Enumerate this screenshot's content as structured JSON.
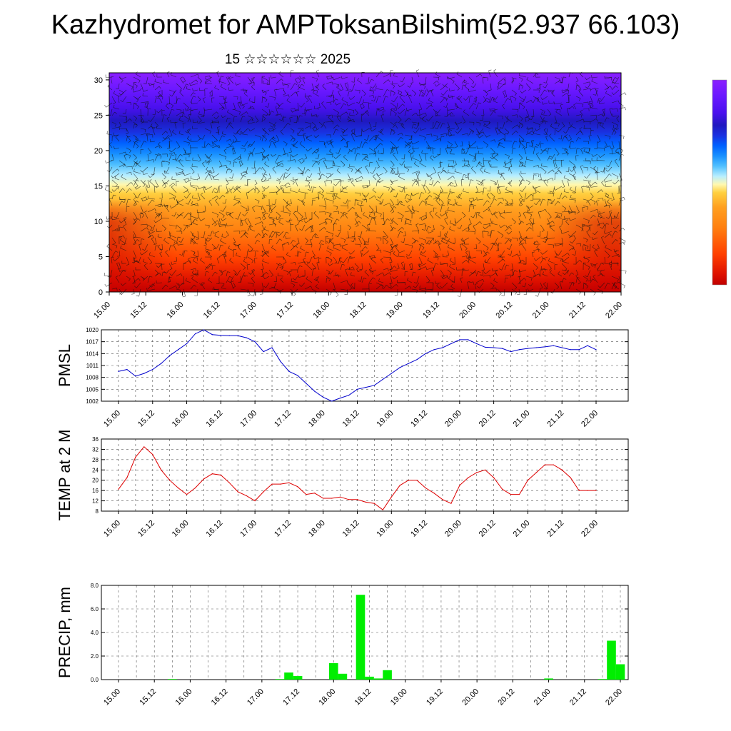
{
  "title": "Kazhydromet for AMPToksanBilshim(52.937 66.103)",
  "subtitle": "15 ☆☆☆☆☆☆ 2025",
  "chart_data": [
    {
      "type": "heatmap",
      "name": "temperature-wind-cross-section",
      "x_tick_labels": [
        "15.00",
        "15.12",
        "16.00",
        "16.12",
        "17.00",
        "17.12",
        "18.00",
        "18.12",
        "19.00",
        "19.12",
        "20.00",
        "20.12",
        "21.00",
        "21.12",
        "22.00"
      ],
      "y_ticks": [
        0,
        5,
        10,
        15,
        20,
        25,
        30
      ],
      "ylim": [
        0,
        31
      ],
      "colorbar": [
        "#8f00ff",
        "#5a00ff",
        "#2020ff",
        "#0060ff",
        "#00a8ff",
        "#60d0ff",
        "#b8f0ff",
        "#fff8a0",
        "#ffd040",
        "#ffa020",
        "#ff7010",
        "#ff3000",
        "#e00000",
        "#b00000"
      ]
    },
    {
      "type": "line",
      "name": "pmsl",
      "ylabel": "PMSL",
      "ylim": [
        1002,
        1020
      ],
      "y_ticks": [
        1002,
        1005,
        1008,
        1011,
        1014,
        1017,
        1020
      ],
      "x_tick_labels": [
        "15.00",
        "15.12",
        "16.00",
        "16.12",
        "17.00",
        "17.12",
        "18.00",
        "18.12",
        "19.00",
        "19.12",
        "20.00",
        "20.12",
        "21.00",
        "21.12",
        "22.00"
      ],
      "color": "#0000cc",
      "x": [
        0,
        3,
        6,
        9,
        12,
        15,
        18,
        21,
        24,
        27,
        30,
        33,
        36,
        39,
        42,
        45,
        48,
        51,
        54,
        57,
        60,
        63,
        66,
        69,
        72,
        75,
        78,
        81,
        84,
        87,
        90,
        93,
        96,
        99,
        102,
        105,
        108,
        111,
        114,
        117,
        120,
        123,
        126,
        129,
        132,
        135,
        138,
        141,
        144,
        147,
        150,
        153,
        156,
        159,
        162,
        165,
        168
      ],
      "values": [
        1009.5,
        1010,
        1008.3,
        1009,
        1010,
        1011.5,
        1013.5,
        1015,
        1016.5,
        1019,
        1020,
        1018.8,
        1018.6,
        1018.5,
        1018.5,
        1018,
        1017,
        1014.5,
        1015.5,
        1012,
        1009.5,
        1008.5,
        1006.5,
        1004.5,
        1003,
        1002,
        1002.8,
        1003.5,
        1005,
        1005.5,
        1006,
        1007.5,
        1009,
        1010.5,
        1011.5,
        1012.5,
        1014,
        1015,
        1015.5,
        1016.5,
        1017.5,
        1017.5,
        1016.5,
        1015.6,
        1015.5,
        1015.3,
        1014.5,
        1015,
        1015.3,
        1015.5,
        1015.7,
        1016,
        1015.5,
        1015,
        1015,
        1016,
        1015
      ]
    },
    {
      "type": "line",
      "name": "temp-2m",
      "ylabel": "TEMP at 2 M",
      "ylim": [
        8,
        36
      ],
      "y_ticks": [
        8,
        12,
        16,
        20,
        24,
        28,
        32,
        36
      ],
      "x_tick_labels": [
        "15.00",
        "15.12",
        "16.00",
        "16.12",
        "17.00",
        "17.12",
        "18.00",
        "18.12",
        "19.00",
        "19.12",
        "20.00",
        "20.12",
        "21.00",
        "21.12",
        "22.00"
      ],
      "color": "#dd0000",
      "x": [
        0,
        3,
        6,
        9,
        12,
        15,
        18,
        21,
        24,
        27,
        30,
        33,
        36,
        39,
        42,
        45,
        48,
        51,
        54,
        57,
        60,
        63,
        66,
        69,
        72,
        75,
        78,
        81,
        84,
        87,
        90,
        93,
        96,
        99,
        102,
        105,
        108,
        111,
        114,
        117,
        120,
        123,
        126,
        129,
        132,
        135,
        138,
        141,
        144,
        147,
        150,
        153,
        156,
        159,
        162,
        165,
        168
      ],
      "values": [
        16.5,
        21,
        29,
        33,
        30,
        24,
        20,
        17,
        14.5,
        17,
        20.5,
        22.5,
        22,
        19,
        15.5,
        14,
        12,
        15.5,
        18.5,
        18.5,
        19,
        17.5,
        14.5,
        15,
        13,
        13,
        13.5,
        12.5,
        12.5,
        11.5,
        11,
        8.5,
        13.5,
        18,
        20,
        20,
        17,
        15,
        12.5,
        11,
        18,
        21,
        23,
        24,
        21,
        16.5,
        14.5,
        14.5,
        20,
        23,
        26,
        26,
        24,
        21,
        16,
        16,
        16
      ]
    },
    {
      "type": "bar",
      "name": "precip",
      "ylabel": "PRECIP, mm",
      "ylim": [
        0,
        8
      ],
      "y_tick_labels": [
        "0.0",
        "2.0",
        "4.0",
        "6.0",
        "8.0"
      ],
      "y_ticks": [
        0,
        2,
        4,
        6,
        8
      ],
      "x_tick_labels": [
        "15.00",
        "15.12",
        "16.00",
        "16.12",
        "17.00",
        "17.12",
        "18.00",
        "18.12",
        "19.00",
        "19.12",
        "20.00",
        "20.12",
        "21.00",
        "21.12",
        "22.00"
      ],
      "color": "#00ee00",
      "x": [
        18,
        54,
        57,
        60,
        72,
        75,
        81,
        84,
        87,
        90,
        144,
        162,
        165,
        168
      ],
      "values": [
        0.05,
        0.05,
        0.6,
        0.3,
        1.4,
        0.5,
        7.2,
        0.25,
        0.1,
        0.8,
        0.1,
        0.05,
        3.3,
        1.3
      ]
    }
  ]
}
